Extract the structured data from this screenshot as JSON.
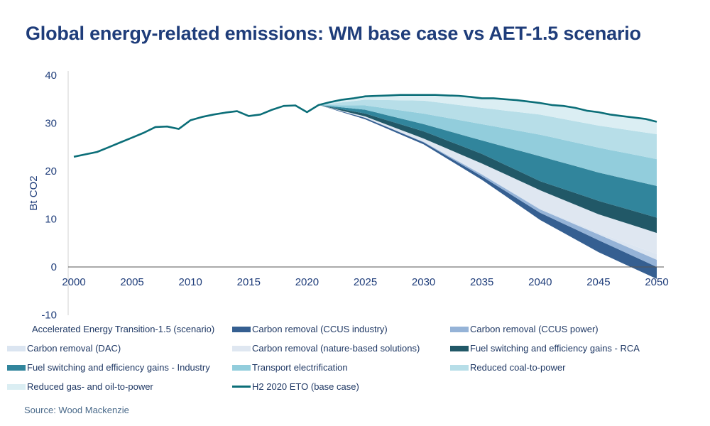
{
  "title": "Global energy-related emissions: WM base case vs AET-1.5 scenario",
  "source": "Source: Wood Mackenzie",
  "chart_data": {
    "type": "area",
    "title": "Global energy-related emissions: WM base case vs AET-1.5 scenario",
    "ylabel": "Bt CO2",
    "xlabel": "",
    "xlim": [
      2000,
      2050
    ],
    "ylim": [
      -10,
      40
    ],
    "x_ticks": [
      "2000",
      "2005",
      "2010",
      "2015",
      "2020",
      "2025",
      "2030",
      "2035",
      "2040",
      "2045",
      "2050"
    ],
    "y_ticks": [
      "40",
      "30",
      "20",
      "10",
      "0",
      "-10"
    ],
    "grid": false,
    "legend_position": "bottom",
    "stack_years": [
      2021,
      2025,
      2030,
      2035,
      2040,
      2045,
      2050
    ],
    "scenario": {
      "name": "Accelerated Energy Transition-1.5 (scenario)",
      "values": [
        33.8,
        30.8,
        25.6,
        18.2,
        9.8,
        3.1,
        -2.5
      ]
    },
    "wedges": [
      {
        "name": "Carbon removal (CCUS industry)",
        "color": "#355f91",
        "values": [
          0,
          0.3,
          0.4,
          0.7,
          1.5,
          2.5,
          2.5
        ]
      },
      {
        "name": "Carbon removal (CCUS power)",
        "color": "#95b3d7",
        "values": [
          0,
          0.05,
          0.1,
          0.4,
          0.7,
          1.2,
          1.5
        ]
      },
      {
        "name": "Carbon removal (DAC)",
        "color": "#dbe5f1",
        "values": [
          0,
          0.05,
          0.1,
          0.2,
          0.3,
          0.4,
          1.2
        ]
      },
      {
        "name": "Carbon removal (nature-based solutions)",
        "color": "#dfe7f1",
        "values": [
          0,
          0.2,
          0.6,
          2.1,
          3.7,
          3.8,
          4.4
        ]
      },
      {
        "name": "Fuel switching and efficiency gains - RCA",
        "color": "#215867",
        "values": [
          0,
          0.6,
          1.5,
          2.0,
          1.9,
          2.8,
          3.2
        ]
      },
      {
        "name": "Fuel switching and efficiency gains - Industry",
        "color": "#31859c",
        "values": [
          0,
          0.8,
          1.5,
          2.8,
          5.2,
          5.9,
          6.6
        ]
      },
      {
        "name": "Transport electrification",
        "color": "#92cddc",
        "values": [
          0,
          0.9,
          2.2,
          3.4,
          4.5,
          5.2,
          5.6
        ]
      },
      {
        "name": "Reduced coal-to-power",
        "color": "#b7dee8",
        "values": [
          0,
          1.2,
          2.7,
          3.4,
          4.2,
          4.6,
          5.2
        ]
      },
      {
        "name": "Reduced gas- and oil-to-power",
        "color": "#dbeef3",
        "values": [
          0,
          0.7,
          1.1,
          2.0,
          2.4,
          2.8,
          2.6
        ]
      }
    ],
    "base_case": {
      "name": "H2 2020 ETO (base case)",
      "color": "#0b6e78",
      "x": [
        2000,
        2001,
        2002,
        2003,
        2004,
        2005,
        2006,
        2007,
        2008,
        2009,
        2010,
        2011,
        2012,
        2013,
        2014,
        2015,
        2016,
        2017,
        2018,
        2019,
        2020,
        2021,
        2022,
        2023,
        2024,
        2025,
        2026,
        2027,
        2028,
        2029,
        2030,
        2031,
        2032,
        2033,
        2034,
        2035,
        2036,
        2037,
        2038,
        2039,
        2040,
        2041,
        2042,
        2043,
        2044,
        2045,
        2046,
        2047,
        2048,
        2049,
        2050
      ],
      "y": [
        23,
        23.5,
        24,
        25,
        26,
        27,
        28,
        29.2,
        29.3,
        28.8,
        30.6,
        31.3,
        31.8,
        32.2,
        32.5,
        31.5,
        31.8,
        32.8,
        33.6,
        33.7,
        32.3,
        33.8,
        34.4,
        34.9,
        35.2,
        35.6,
        35.7,
        35.8,
        35.9,
        35.9,
        35.9,
        35.9,
        35.8,
        35.7,
        35.5,
        35.2,
        35.2,
        35.0,
        34.8,
        34.5,
        34.2,
        33.8,
        33.6,
        33.2,
        32.6,
        32.3,
        31.8,
        31.5,
        31.2,
        30.9,
        30.3
      ]
    }
  }
}
